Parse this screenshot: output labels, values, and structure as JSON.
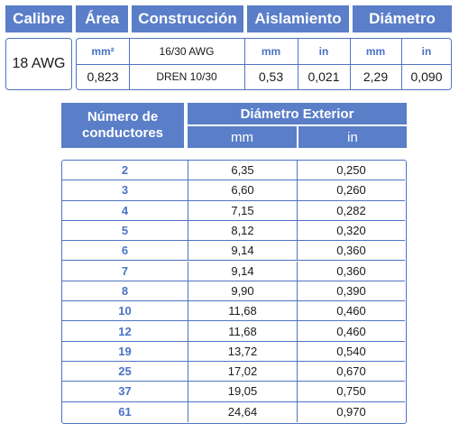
{
  "spec": {
    "headers": {
      "calibre": "Calibre",
      "area": "Área",
      "construccion": "Construcción",
      "aislamiento": "Aislamiento",
      "diametro": "Diámetro"
    },
    "calibre_value": "18 AWG",
    "area_unit": "mm²",
    "area_value": "0,823",
    "construccion_top": "16/30 AWG",
    "construccion_bottom": "DREN 10/30",
    "aislamiento_units": {
      "mm": "mm",
      "in": "in"
    },
    "aislamiento_values": {
      "mm": "0,53",
      "in": "0,021"
    },
    "diametro_units": {
      "mm": "mm",
      "in": "in"
    },
    "diametro_values": {
      "mm": "2,29",
      "in": "0,090"
    }
  },
  "conductors": {
    "header_count": "Número de conductores",
    "header_diameter": "Diámetro Exterior",
    "unit_mm": "mm",
    "unit_in": "in",
    "rows": [
      {
        "n": "2",
        "mm": "6,35",
        "in": "0,250"
      },
      {
        "n": "3",
        "mm": "6,60",
        "in": "0,260"
      },
      {
        "n": "4",
        "mm": "7,15",
        "in": "0,282"
      },
      {
        "n": "5",
        "mm": "8,12",
        "in": "0,320"
      },
      {
        "n": "6",
        "mm": "9,14",
        "in": "0,360"
      },
      {
        "n": "7",
        "mm": "9,14",
        "in": "0,360"
      },
      {
        "n": "8",
        "mm": "9,90",
        "in": "0,390"
      },
      {
        "n": "10",
        "mm": "11,68",
        "in": "0,460"
      },
      {
        "n": "12",
        "mm": "11,68",
        "in": "0,460"
      },
      {
        "n": "19",
        "mm": "13,72",
        "in": "0,540"
      },
      {
        "n": "25",
        "mm": "17,02",
        "in": "0,670"
      },
      {
        "n": "37",
        "mm": "19,05",
        "in": "0,750"
      },
      {
        "n": "61",
        "mm": "24,64",
        "in": "0,970"
      }
    ]
  }
}
